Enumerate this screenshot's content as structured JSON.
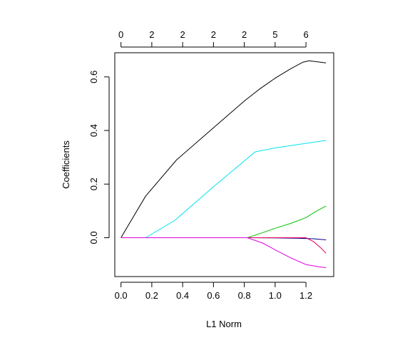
{
  "chart_data": {
    "type": "line",
    "title": "",
    "xlabel": "L1 Norm",
    "ylabel": "Coefficients",
    "xlim": [
      -0.04,
      1.38
    ],
    "ylim": [
      -0.145,
      0.69
    ],
    "x_ticks": [
      0.0,
      0.2,
      0.4,
      0.6,
      0.8,
      1.0,
      1.2
    ],
    "x_tick_labels": [
      "0.0",
      "0.2",
      "0.4",
      "0.6",
      "0.8",
      "1.0",
      "1.2"
    ],
    "y_ticks": [
      0.0,
      0.2,
      0.4,
      0.6
    ],
    "y_tick_labels": [
      "0.0",
      "0.2",
      "0.4",
      "0.6"
    ],
    "top_axis": {
      "ticks": [
        0.0,
        0.2,
        0.4,
        0.6,
        0.8,
        1.0,
        1.2
      ],
      "labels": [
        "0",
        "2",
        "2",
        "2",
        "2",
        "5",
        "6"
      ]
    },
    "grid": false,
    "legend": "none",
    "series": [
      {
        "color": "#000000",
        "points": [
          [
            0.0,
            0.0
          ],
          [
            0.16,
            0.155
          ],
          [
            0.36,
            0.29
          ],
          [
            0.6,
            0.41
          ],
          [
            0.8,
            0.51
          ],
          [
            0.9,
            0.555
          ],
          [
            1.0,
            0.595
          ],
          [
            1.1,
            0.63
          ],
          [
            1.18,
            0.655
          ],
          [
            1.22,
            0.66
          ],
          [
            1.33,
            0.652
          ]
        ]
      },
      {
        "color": "#00e5ee",
        "points": [
          [
            0.0,
            0.0
          ],
          [
            0.16,
            0.0
          ],
          [
            0.35,
            0.065
          ],
          [
            0.6,
            0.19
          ],
          [
            0.87,
            0.32
          ],
          [
            1.0,
            0.335
          ],
          [
            1.2,
            0.352
          ],
          [
            1.33,
            0.363
          ]
        ]
      },
      {
        "color": "#00c000",
        "points": [
          [
            0.0,
            0.0
          ],
          [
            0.82,
            0.0
          ],
          [
            0.9,
            0.015
          ],
          [
            1.0,
            0.035
          ],
          [
            1.1,
            0.053
          ],
          [
            1.2,
            0.075
          ],
          [
            1.27,
            0.1
          ],
          [
            1.33,
            0.118
          ]
        ]
      },
      {
        "color": "#00008b",
        "points": [
          [
            0.0,
            0.0
          ],
          [
            0.85,
            0.0
          ],
          [
            1.0,
            -0.001
          ],
          [
            1.15,
            -0.002
          ],
          [
            1.25,
            -0.004
          ],
          [
            1.33,
            -0.008
          ]
        ]
      },
      {
        "color": "#e0005a",
        "points": [
          [
            0.0,
            0.0
          ],
          [
            1.2,
            0.0
          ],
          [
            1.25,
            -0.015
          ],
          [
            1.3,
            -0.04
          ],
          [
            1.33,
            -0.058
          ]
        ]
      },
      {
        "color": "#e000e0",
        "points": [
          [
            0.0,
            0.0
          ],
          [
            0.82,
            0.0
          ],
          [
            0.92,
            -0.02
          ],
          [
            1.0,
            -0.045
          ],
          [
            1.1,
            -0.075
          ],
          [
            1.2,
            -0.1
          ],
          [
            1.28,
            -0.108
          ],
          [
            1.33,
            -0.112
          ]
        ]
      }
    ]
  }
}
